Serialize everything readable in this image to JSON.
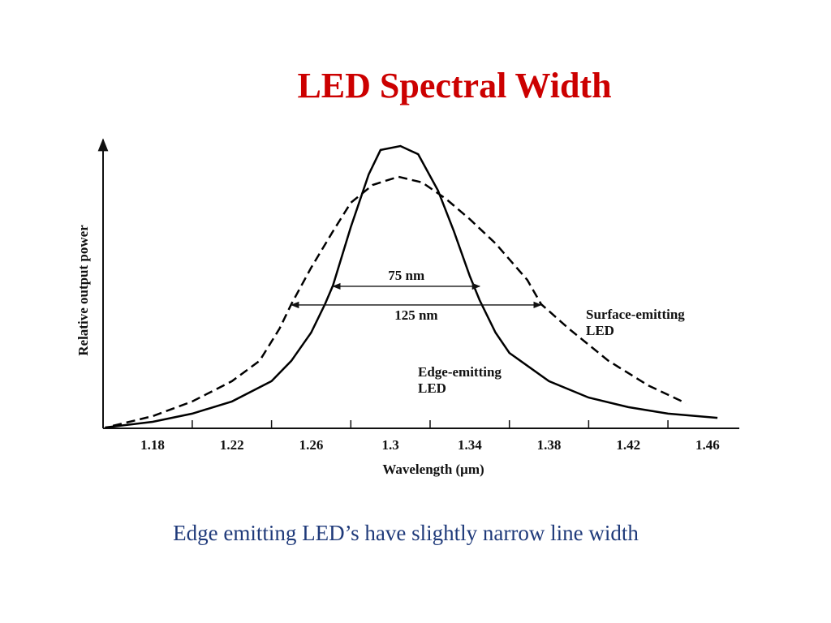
{
  "title": "LED Spectral Width",
  "caption": "Edge emitting LED’s have slightly narrow line width",
  "chart_data": {
    "type": "line",
    "xlabel": "Wavelength (μm)",
    "ylabel": "Relative output power",
    "xlim": [
      1.155,
      1.476
    ],
    "ylim": [
      0,
      1
    ],
    "xticks": [
      1.18,
      1.22,
      1.26,
      1.3,
      1.34,
      1.38,
      1.42,
      1.46
    ],
    "grid": false,
    "series": [
      {
        "name": "Edge-emitting LED",
        "color": "#000000",
        "style": "solid",
        "x": [
          1.156,
          1.18,
          1.2,
          1.22,
          1.24,
          1.25,
          1.26,
          1.267,
          1.271,
          1.28,
          1.289,
          1.295,
          1.305,
          1.314,
          1.324,
          1.332,
          1.34,
          1.345,
          1.353,
          1.36,
          1.38,
          1.4,
          1.42,
          1.44,
          1.465
        ],
        "values": [
          0.003,
          0.023,
          0.052,
          0.095,
          0.167,
          0.239,
          0.339,
          0.44,
          0.506,
          0.713,
          0.899,
          0.986,
          1.0,
          0.971,
          0.842,
          0.698,
          0.54,
          0.454,
          0.339,
          0.267,
          0.167,
          0.109,
          0.075,
          0.052,
          0.037
        ]
      },
      {
        "name": "Surface-emitting LED",
        "color": "#000000",
        "style": "dashed",
        "x": [
          1.16,
          1.18,
          1.2,
          1.22,
          1.234,
          1.244,
          1.25,
          1.26,
          1.271,
          1.28,
          1.291,
          1.304,
          1.316,
          1.328,
          1.34,
          1.353,
          1.369,
          1.376,
          1.39,
          1.41,
          1.43,
          1.449
        ],
        "values": [
          0.009,
          0.043,
          0.095,
          0.167,
          0.239,
          0.353,
          0.44,
          0.569,
          0.698,
          0.799,
          0.862,
          0.891,
          0.871,
          0.813,
          0.741,
          0.655,
          0.526,
          0.44,
          0.353,
          0.239,
          0.152,
          0.089
        ]
      }
    ],
    "annotations": [
      {
        "text": "75 nm",
        "x": [
          1.271,
          1.345
        ],
        "y": 0.503
      },
      {
        "text": "125 nm",
        "x": [
          1.25,
          1.376
        ],
        "y": 0.437
      }
    ]
  }
}
